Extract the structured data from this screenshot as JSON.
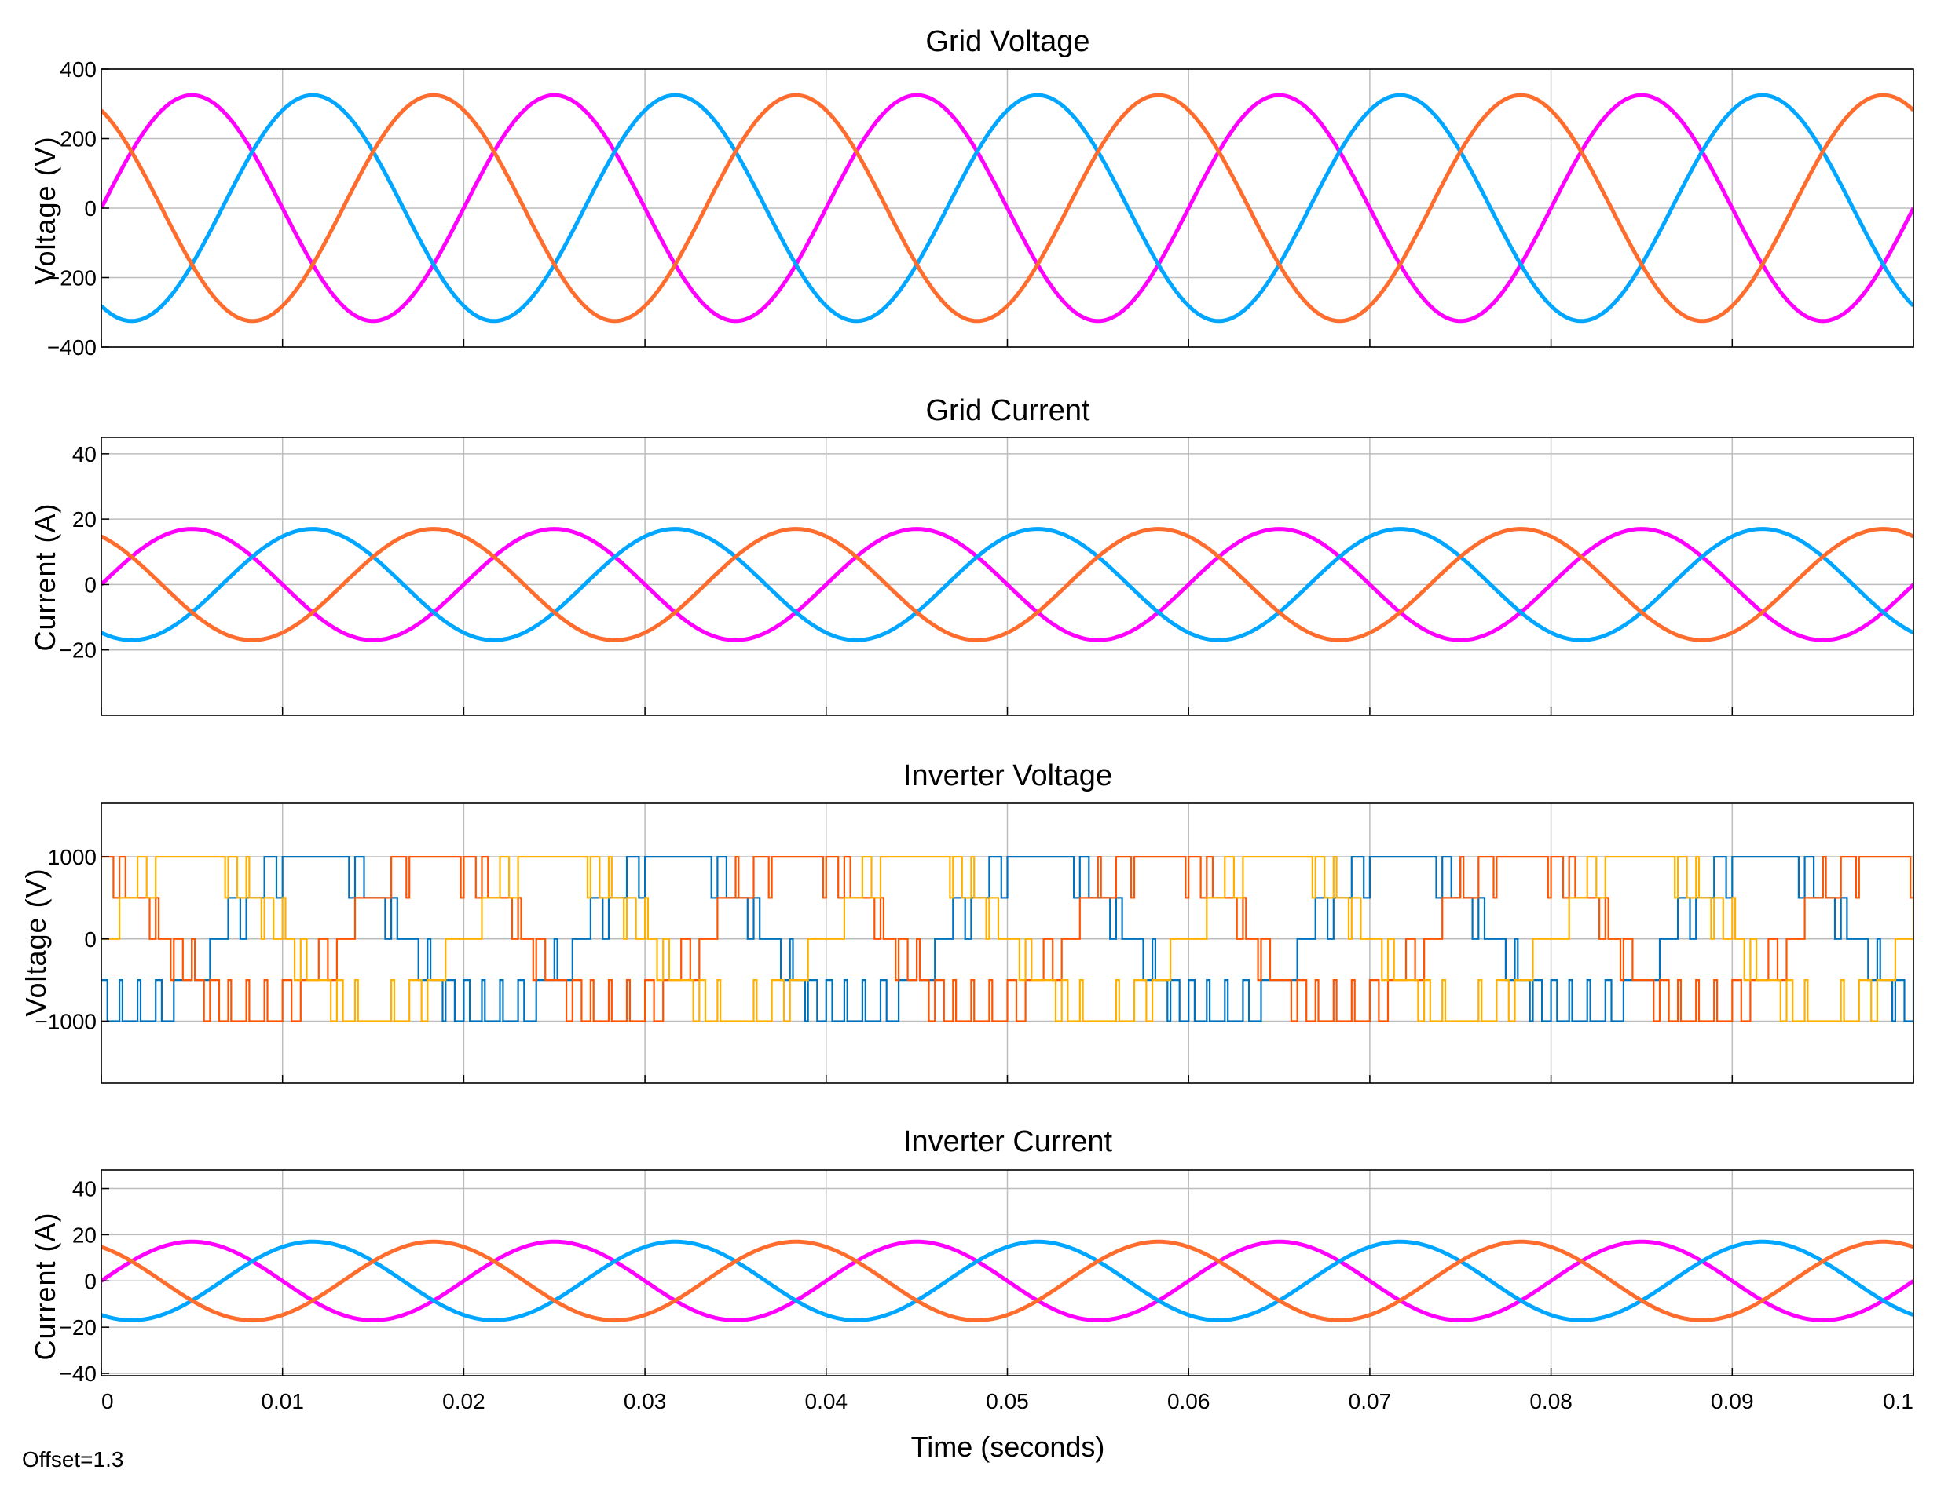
{
  "chart_data": [
    {
      "type": "line",
      "title": "Grid Voltage",
      "ylabel": "Voltage (V)",
      "xlim": [
        0,
        0.1
      ],
      "ylim": [
        -400,
        400
      ],
      "yticks": [
        -400,
        -200,
        0,
        200,
        400
      ],
      "ytick_labels": [
        "−400",
        "−200",
        "0",
        "200",
        "400"
      ],
      "grid": true,
      "frequency_hz": 50,
      "series": [
        {
          "color": "#ff00ff",
          "amplitude": 325,
          "phase_deg": 0
        },
        {
          "color": "#00a6ff",
          "amplitude": 325,
          "phase_deg": -120
        },
        {
          "color": "#ff6d2e",
          "amplitude": 325,
          "phase_deg": 120
        }
      ]
    },
    {
      "type": "line",
      "title": "Grid Current",
      "ylabel": "Current (A)",
      "xlim": [
        0,
        0.1
      ],
      "ylim": [
        -40,
        45
      ],
      "yticks": [
        -20,
        0,
        20,
        40
      ],
      "ytick_labels": [
        "−20",
        "0",
        "20",
        "40"
      ],
      "grid": true,
      "frequency_hz": 50,
      "series": [
        {
          "color": "#ff00ff",
          "amplitude": 17,
          "phase_deg": 0
        },
        {
          "color": "#00a6ff",
          "amplitude": 17,
          "phase_deg": -120
        },
        {
          "color": "#ff6d2e",
          "amplitude": 17,
          "phase_deg": 120
        }
      ]
    },
    {
      "type": "line",
      "title": "Inverter Voltage",
      "ylabel": "Voltage (V)",
      "xlim": [
        0,
        0.1
      ],
      "ylim": [
        -1750,
        1650
      ],
      "yticks": [
        -1000,
        0,
        1000
      ],
      "ytick_labels": [
        "−1000",
        "0",
        "1000"
      ],
      "grid": true,
      "frequency_hz": 50,
      "levels": [
        -1000,
        -500,
        0,
        500,
        1000
      ],
      "series": [
        {
          "color": "#0072bd",
          "phase_deg": -120
        },
        {
          "color": "#ff5400",
          "phase_deg": 120
        },
        {
          "color": "#ffb000",
          "phase_deg": 0
        }
      ]
    },
    {
      "type": "line",
      "title": "Inverter Current",
      "ylabel": "Current (A)",
      "xlabel": "Time (seconds)",
      "xlim": [
        0,
        0.1
      ],
      "ylim": [
        -41,
        48
      ],
      "yticks": [
        -40,
        -20,
        0,
        20,
        40
      ],
      "ytick_labels": [
        "−40",
        "−20",
        "0",
        "20",
        "40"
      ],
      "xticks": [
        0,
        0.01,
        0.02,
        0.03,
        0.04,
        0.05,
        0.06,
        0.07,
        0.08,
        0.09,
        0.1
      ],
      "xtick_labels": [
        "0",
        "0.01",
        "0.02",
        "0.03",
        "0.04",
        "0.05",
        "0.06",
        "0.07",
        "0.08",
        "0.09",
        "0.1"
      ],
      "grid": true,
      "frequency_hz": 50,
      "series": [
        {
          "color": "#ff00ff",
          "amplitude": 17,
          "phase_deg": 0
        },
        {
          "color": "#00a6ff",
          "amplitude": 17,
          "phase_deg": -120
        },
        {
          "color": "#ff6d2e",
          "amplitude": 17,
          "phase_deg": 120
        }
      ]
    }
  ],
  "offset_label": "Offset=1.3"
}
